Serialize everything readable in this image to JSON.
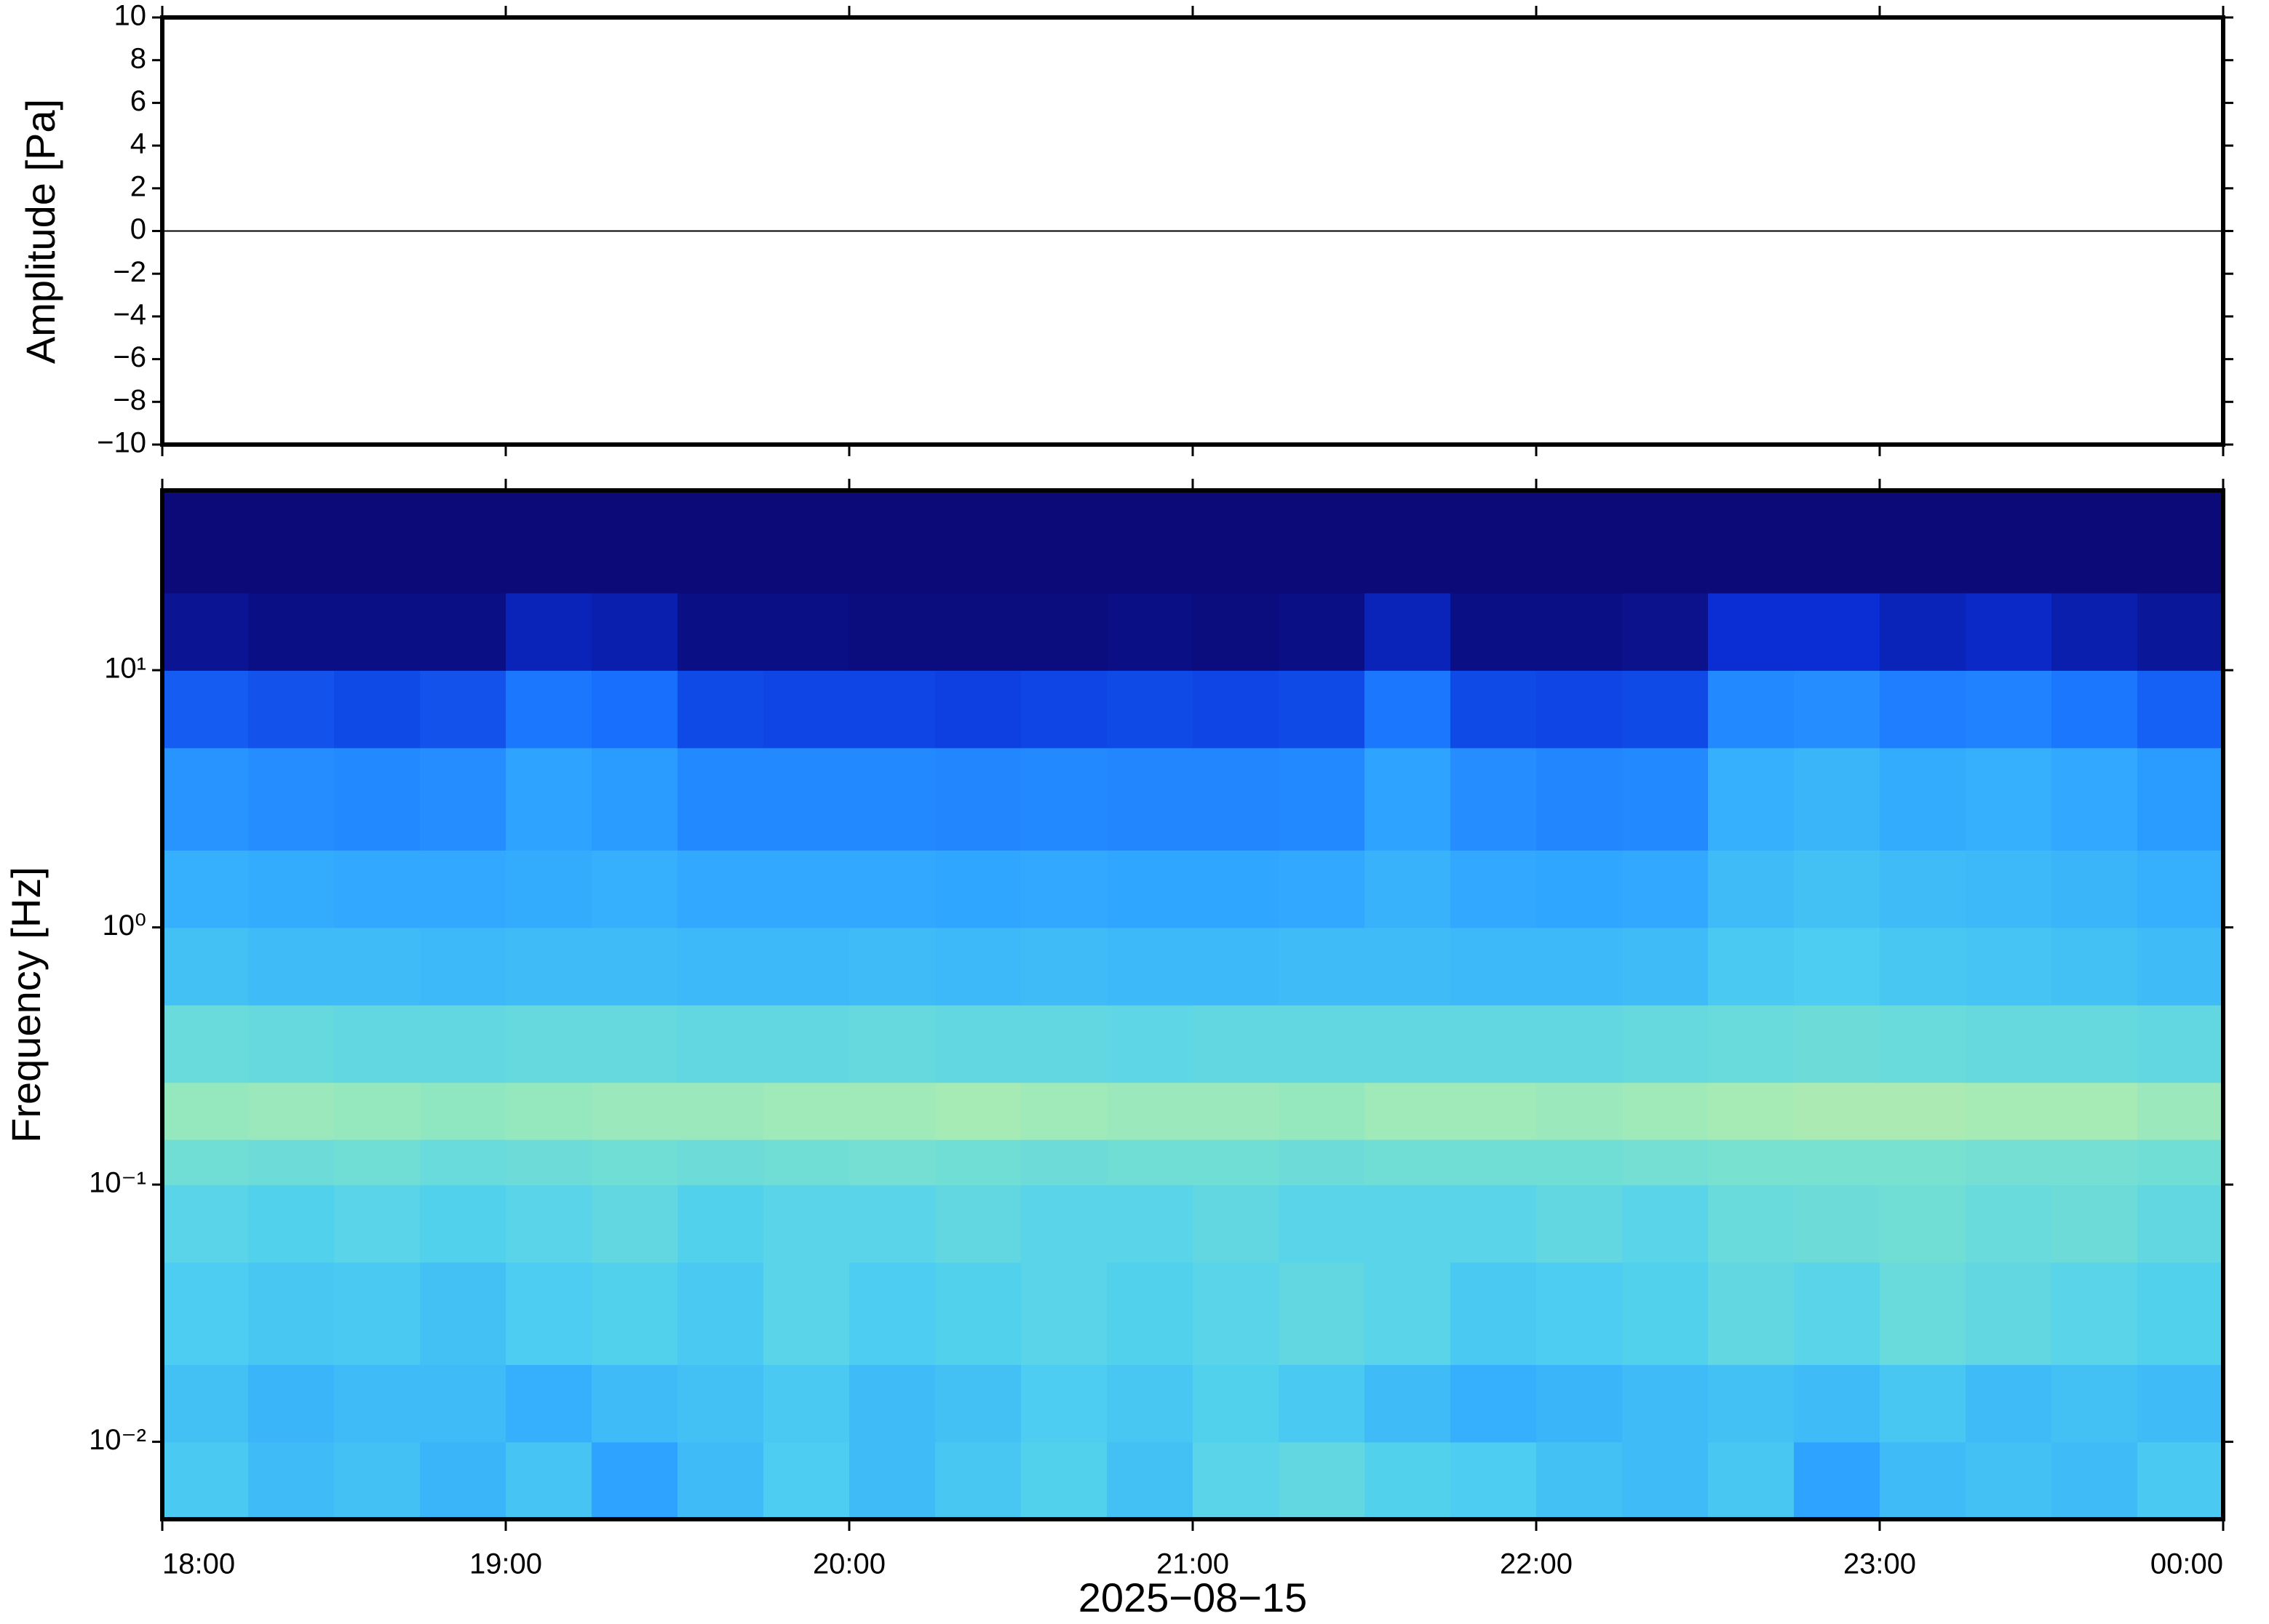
{
  "chart_data": [
    {
      "type": "line",
      "ylabel": "Amplitude [Pa]",
      "ylim": [
        -10,
        10
      ],
      "yticks": [
        {
          "value": -10,
          "label": "−10"
        },
        {
          "value": -8,
          "label": "−8"
        },
        {
          "value": -6,
          "label": "−6"
        },
        {
          "value": -4,
          "label": "−4"
        },
        {
          "value": -2,
          "label": "−2"
        },
        0,
        2,
        4,
        6,
        8,
        10
      ],
      "series": [
        {
          "color": "#000000",
          "values": [
            0,
            0,
            0,
            0,
            0,
            0,
            0
          ]
        }
      ]
    },
    {
      "type": "heatmap",
      "ylabel": "Frequency [Hz]",
      "xlabel": "2025−08−15",
      "log_y": true,
      "xticks": [
        "18:00",
        "19:00",
        "20:00",
        "21:00",
        "22:00",
        "23:00",
        "00:00"
      ],
      "ylim": [
        0.005,
        50
      ],
      "yticks": [
        {
          "value": 0.01,
          "label": "10⁻²"
        },
        {
          "value": 0.1,
          "label": "10⁻¹"
        },
        {
          "value": 1,
          "label": "10⁰"
        },
        {
          "value": 10,
          "label": "10¹"
        }
      ],
      "ybins": [
        0.005,
        0.01,
        0.02,
        0.05,
        0.1,
        0.15,
        0.25,
        0.5,
        1,
        2,
        5,
        10,
        20,
        50
      ],
      "zlim": [
        0,
        1
      ],
      "colormap": [
        "#0b0a78",
        "#0a2fd6",
        "#1a72ff",
        "#2fa6ff",
        "#4fd0f0",
        "#86e6c6",
        "#d8ef9c",
        "#f4e88a"
      ],
      "z": [
        [
          0.55,
          0.5,
          0.52,
          0.48,
          0.53,
          0.42,
          0.5,
          0.56,
          0.5,
          0.54,
          0.58,
          0.52,
          0.6,
          0.62,
          0.58,
          0.56,
          0.52,
          0.5,
          0.54,
          0.42,
          0.5,
          0.52,
          0.5,
          0.55
        ],
        [
          0.52,
          0.48,
          0.5,
          0.5,
          0.46,
          0.5,
          0.52,
          0.55,
          0.5,
          0.52,
          0.56,
          0.54,
          0.58,
          0.55,
          0.5,
          0.46,
          0.48,
          0.5,
          0.52,
          0.5,
          0.54,
          0.5,
          0.52,
          0.5
        ],
        [
          0.56,
          0.54,
          0.55,
          0.52,
          0.56,
          0.58,
          0.55,
          0.6,
          0.56,
          0.58,
          0.6,
          0.58,
          0.6,
          0.62,
          0.6,
          0.55,
          0.56,
          0.58,
          0.62,
          0.6,
          0.64,
          0.62,
          0.6,
          0.58
        ],
        [
          0.6,
          0.58,
          0.6,
          0.58,
          0.6,
          0.62,
          0.58,
          0.6,
          0.6,
          0.62,
          0.6,
          0.6,
          0.62,
          0.6,
          0.6,
          0.6,
          0.62,
          0.6,
          0.64,
          0.65,
          0.66,
          0.64,
          0.65,
          0.62
        ],
        [
          0.66,
          0.65,
          0.66,
          0.64,
          0.65,
          0.66,
          0.65,
          0.66,
          0.67,
          0.66,
          0.65,
          0.66,
          0.66,
          0.65,
          0.66,
          0.66,
          0.66,
          0.67,
          0.68,
          0.68,
          0.68,
          0.67,
          0.67,
          0.66
        ],
        [
          0.74,
          0.75,
          0.74,
          0.73,
          0.74,
          0.75,
          0.75,
          0.76,
          0.76,
          0.77,
          0.76,
          0.75,
          0.75,
          0.74,
          0.76,
          0.76,
          0.75,
          0.76,
          0.77,
          0.78,
          0.78,
          0.77,
          0.77,
          0.75
        ],
        [
          0.64,
          0.63,
          0.62,
          0.62,
          0.63,
          0.63,
          0.62,
          0.62,
          0.63,
          0.62,
          0.62,
          0.61,
          0.62,
          0.62,
          0.62,
          0.62,
          0.62,
          0.63,
          0.64,
          0.65,
          0.64,
          0.63,
          0.63,
          0.62
        ],
        [
          0.52,
          0.5,
          0.5,
          0.49,
          0.5,
          0.5,
          0.49,
          0.49,
          0.5,
          0.49,
          0.5,
          0.49,
          0.49,
          0.5,
          0.5,
          0.49,
          0.49,
          0.5,
          0.55,
          0.56,
          0.54,
          0.53,
          0.52,
          0.5
        ],
        [
          0.46,
          0.45,
          0.44,
          0.44,
          0.45,
          0.46,
          0.44,
          0.44,
          0.44,
          0.43,
          0.44,
          0.43,
          0.43,
          0.44,
          0.47,
          0.44,
          0.43,
          0.44,
          0.5,
          0.52,
          0.5,
          0.49,
          0.48,
          0.46
        ],
        [
          0.38,
          0.36,
          0.35,
          0.36,
          0.42,
          0.4,
          0.35,
          0.35,
          0.35,
          0.34,
          0.35,
          0.34,
          0.34,
          0.35,
          0.42,
          0.36,
          0.34,
          0.35,
          0.46,
          0.48,
          0.45,
          0.46,
          0.44,
          0.4
        ],
        [
          0.24,
          0.22,
          0.2,
          0.22,
          0.3,
          0.28,
          0.2,
          0.19,
          0.19,
          0.18,
          0.19,
          0.2,
          0.19,
          0.2,
          0.3,
          0.2,
          0.19,
          0.2,
          0.35,
          0.36,
          0.32,
          0.33,
          0.3,
          0.25
        ],
        [
          0.04,
          0.02,
          0.02,
          0.02,
          0.1,
          0.08,
          0.02,
          0.02,
          0.01,
          0.01,
          0.01,
          0.02,
          0.01,
          0.02,
          0.1,
          0.02,
          0.02,
          0.03,
          0.14,
          0.14,
          0.1,
          0.12,
          0.08,
          0.05
        ],
        [
          0,
          0,
          0,
          0,
          0,
          0,
          0,
          0,
          0,
          0,
          0,
          0,
          0,
          0,
          0,
          0,
          0,
          0,
          0,
          0,
          0,
          0,
          0,
          0
        ]
      ]
    }
  ]
}
